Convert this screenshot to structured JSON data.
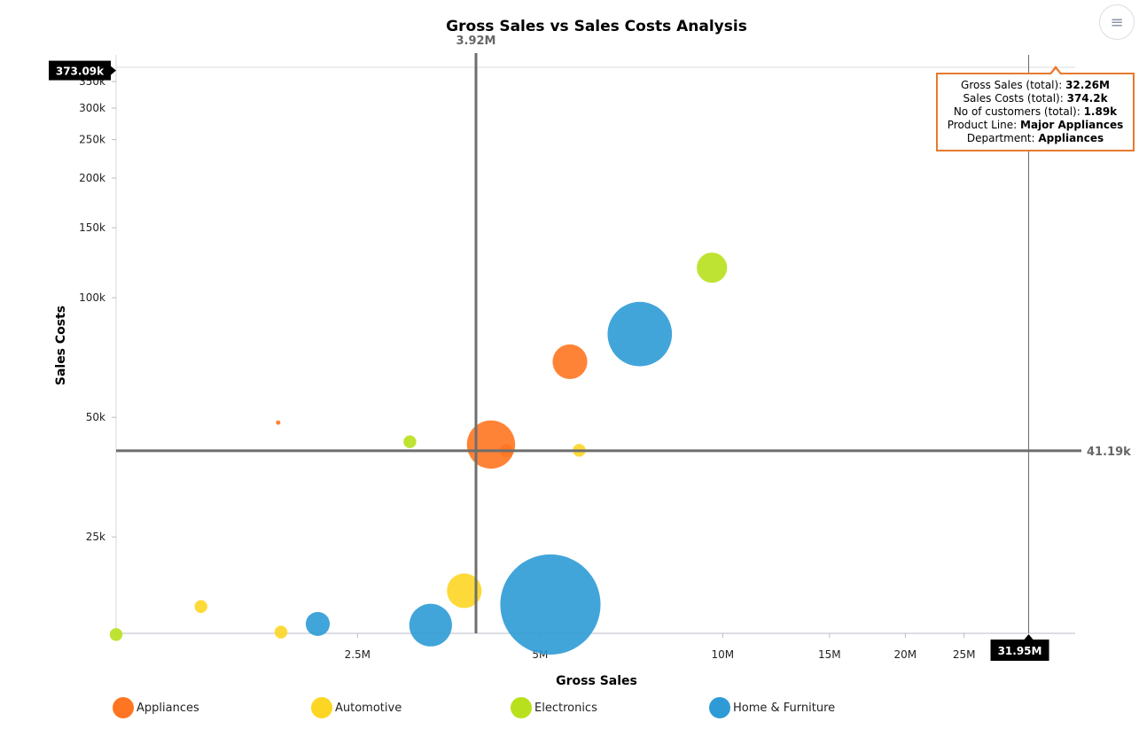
{
  "menu": {
    "icon": "hamburger-menu-icon",
    "glyph": "≡"
  },
  "tooltip": {
    "rows": [
      {
        "label": "Gross Sales (total): ",
        "value": "32.26M"
      },
      {
        "label": "Sales Costs (total): ",
        "value": "374.2k"
      },
      {
        "label": "No of customers (total): ",
        "value": "1.89k"
      },
      {
        "label": "Product Line: ",
        "value": "Major Appliances"
      },
      {
        "label": "Department: ",
        "value": "Appliances"
      }
    ],
    "border_color": "#e8792d"
  },
  "chart_data": {
    "type": "bubble",
    "title": "Gross Sales vs Sales Costs Analysis",
    "xlabel": "Gross Sales",
    "ylabel": "Sales Costs",
    "x_scale": "log",
    "y_scale": "log",
    "xlim": [
      1000000,
      36000000
    ],
    "ylim": [
      14300,
      380000
    ],
    "x_ticks": [
      {
        "value": 2500000,
        "label": "2.5M"
      },
      {
        "value": 5000000,
        "label": "5M"
      },
      {
        "value": 10000000,
        "label": "10M"
      },
      {
        "value": 15000000,
        "label": "15M"
      },
      {
        "value": 20000000,
        "label": "20M"
      },
      {
        "value": 25000000,
        "label": "25M"
      }
    ],
    "y_ticks": [
      {
        "value": 25000,
        "label": "25k"
      },
      {
        "value": 50000,
        "label": "50k"
      },
      {
        "value": 100000,
        "label": "100k"
      },
      {
        "value": 150000,
        "label": "150k"
      },
      {
        "value": 200000,
        "label": "200k"
      },
      {
        "value": 250000,
        "label": "250k"
      },
      {
        "value": 300000,
        "label": "300k"
      },
      {
        "value": 350000,
        "label": "350k"
      }
    ],
    "reference_lines": {
      "x": {
        "value": 3920000,
        "label": "3.92M"
      },
      "y": {
        "value": 41190,
        "label": "41.19k"
      }
    },
    "crosshair": {
      "x": {
        "value": 31950000,
        "label": "31.95M"
      },
      "y": {
        "value": 373090,
        "label": "373.09k"
      }
    },
    "legend_position": "bottom",
    "series": [
      {
        "name": "Appliances",
        "color": "#ff7521",
        "points": [
          {
            "x": 1850000,
            "y": 48500,
            "size": 60
          },
          {
            "x": 4150000,
            "y": 42700,
            "size": 18500
          },
          {
            "x": 4400000,
            "y": 41200,
            "size": 1300
          },
          {
            "x": 5600000,
            "y": 69000,
            "size": 9600
          }
        ]
      },
      {
        "name": "Automotive",
        "color": "#fdd623",
        "points": [
          {
            "x": 1380000,
            "y": 16700,
            "size": 1300
          },
          {
            "x": 1870000,
            "y": 14400,
            "size": 1300
          },
          {
            "x": 3750000,
            "y": 18300,
            "size": 9600
          },
          {
            "x": 5800000,
            "y": 41300,
            "size": 1300
          }
        ]
      },
      {
        "name": "Electronics",
        "color": "#b8e01c",
        "points": [
          {
            "x": 1000000,
            "y": 14200,
            "size": 1300
          },
          {
            "x": 3050000,
            "y": 43400,
            "size": 1300
          },
          {
            "x": 9600000,
            "y": 119000,
            "size": 7300
          }
        ]
      },
      {
        "name": "Home & Furniture",
        "color": "#2e9bd6",
        "points": [
          {
            "x": 2150000,
            "y": 15100,
            "size": 4600
          },
          {
            "x": 3300000,
            "y": 15000,
            "size": 14500
          },
          {
            "x": 5200000,
            "y": 16900,
            "size": 80000
          },
          {
            "x": 7300000,
            "y": 81000,
            "size": 33000
          }
        ]
      }
    ]
  }
}
